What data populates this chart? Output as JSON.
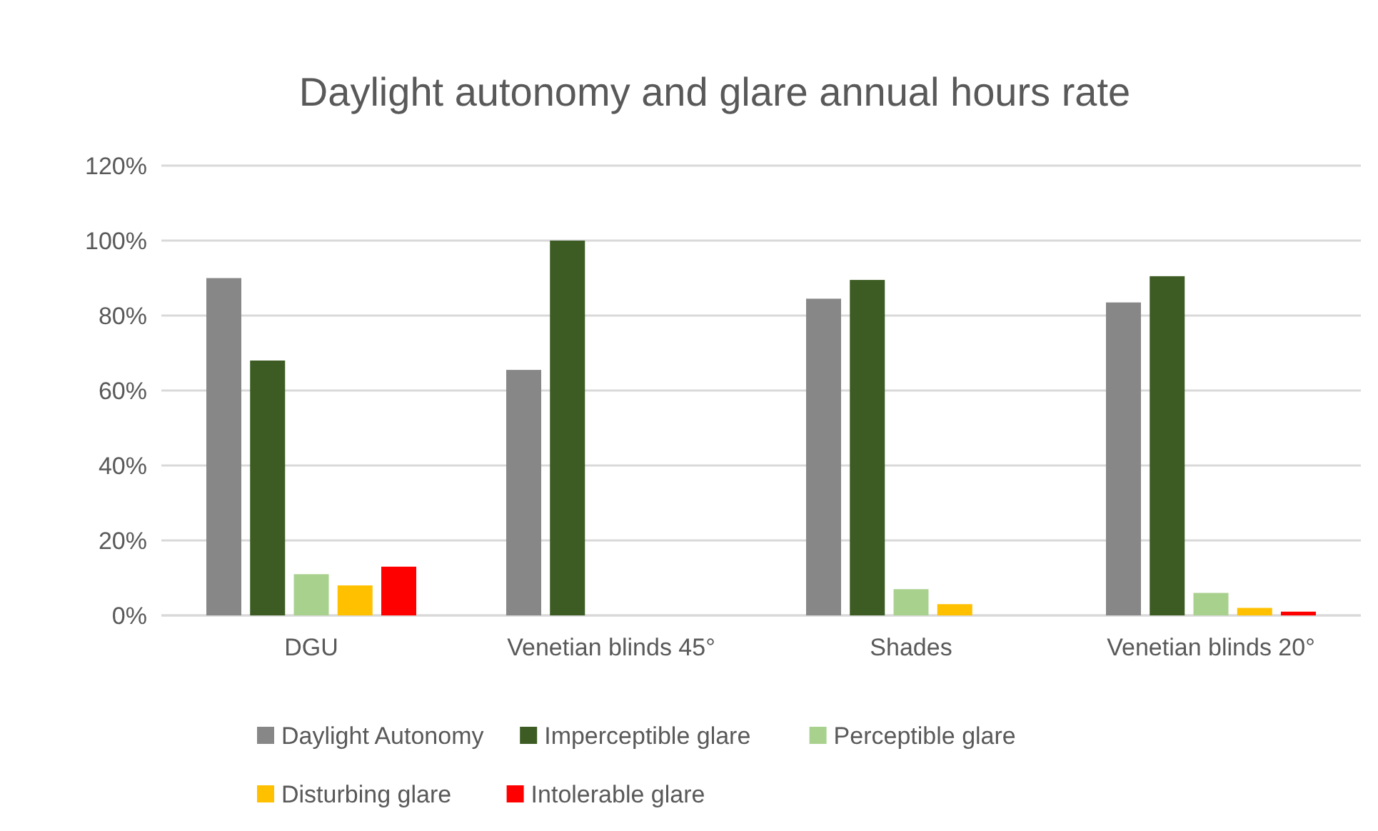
{
  "chart_data": {
    "type": "bar",
    "title": "Daylight autonomy and glare annual hours rate",
    "categories": [
      "DGU",
      "Venetian blinds 45°",
      "Shades",
      "Venetian blinds 20°"
    ],
    "series": [
      {
        "name": "Daylight Autonomy",
        "color": "#878787",
        "values": [
          90,
          65.5,
          84.5,
          83.5
        ]
      },
      {
        "name": "Imperceptible glare",
        "color": "#3d5c24",
        "values": [
          68,
          100,
          89.5,
          90.5
        ]
      },
      {
        "name": "Perceptible glare",
        "color": "#a9d18e",
        "values": [
          11,
          0,
          7,
          6
        ]
      },
      {
        "name": "Disturbing glare",
        "color": "#ffc000",
        "values": [
          8,
          0,
          3,
          2
        ]
      },
      {
        "name": "Intolerable glare",
        "color": "#ff0000",
        "values": [
          13,
          0,
          0,
          1
        ]
      }
    ],
    "ylim": [
      0,
      120
    ],
    "yticks": [
      {
        "value": 0,
        "label": "0%"
      },
      {
        "value": 20,
        "label": "20%"
      },
      {
        "value": 40,
        "label": "40%"
      },
      {
        "value": 60,
        "label": "60%"
      },
      {
        "value": 80,
        "label": "80%"
      },
      {
        "value": 100,
        "label": "100%"
      },
      {
        "value": 120,
        "label": "120%"
      }
    ],
    "grid": "y",
    "legend": "bottom"
  }
}
